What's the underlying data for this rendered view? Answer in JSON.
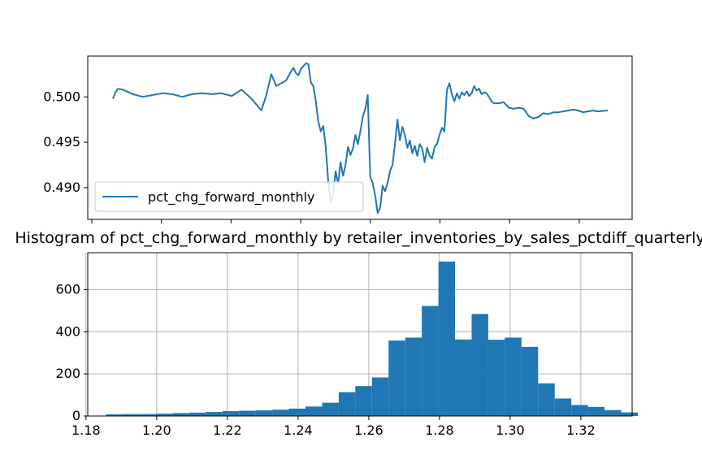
{
  "chart_data": [
    {
      "type": "line",
      "title": "",
      "xlabel": "",
      "ylabel": "",
      "ylim": [
        0.4865,
        0.5045
      ],
      "yticks": [
        0.49,
        0.495,
        0.5
      ],
      "ytick_labels": [
        "0.490",
        "0.495",
        "0.500"
      ],
      "legend_position": "lower-left",
      "grid": false,
      "series": [
        {
          "name": "pct_chg_forward_monthly",
          "color": "#1f77b4",
          "x": [
            0,
            0.005,
            0.01,
            0.02,
            0.04,
            0.06,
            0.08,
            0.1,
            0.12,
            0.14,
            0.16,
            0.18,
            0.2,
            0.22,
            0.24,
            0.26,
            0.28,
            0.3,
            0.31,
            0.32,
            0.33,
            0.35,
            0.36,
            0.365,
            0.37,
            0.375,
            0.38,
            0.385,
            0.39,
            0.395,
            0.4,
            0.405,
            0.41,
            0.415,
            0.42,
            0.425,
            0.43,
            0.435,
            0.44,
            0.445,
            0.45,
            0.455,
            0.46,
            0.465,
            0.47,
            0.475,
            0.48,
            0.485,
            0.49,
            0.495,
            0.5,
            0.505,
            0.51,
            0.515,
            0.52,
            0.525,
            0.53,
            0.535,
            0.54,
            0.545,
            0.55,
            0.555,
            0.56,
            0.565,
            0.57,
            0.575,
            0.58,
            0.585,
            0.59,
            0.595,
            0.6,
            0.605,
            0.61,
            0.615,
            0.62,
            0.625,
            0.63,
            0.635,
            0.64,
            0.645,
            0.65,
            0.655,
            0.66,
            0.665,
            0.67,
            0.675,
            0.68,
            0.685,
            0.69,
            0.695,
            0.7,
            0.705,
            0.71,
            0.715,
            0.72,
            0.725,
            0.73,
            0.735,
            0.74,
            0.745,
            0.75,
            0.755,
            0.76,
            0.765,
            0.77,
            0.78,
            0.79,
            0.8,
            0.81,
            0.82,
            0.83,
            0.84,
            0.85,
            0.86,
            0.87,
            0.88,
            0.89,
            0.9,
            0.91,
            0.92,
            0.93,
            0.94,
            0.95,
            0.96,
            0.97,
            0.98,
            1.0
          ],
          "y": [
            0.4998,
            0.5005,
            0.5009,
            0.5008,
            0.5003,
            0.5,
            0.5002,
            0.5004,
            0.5003,
            0.5,
            0.5003,
            0.5004,
            0.5003,
            0.5004,
            0.5001,
            0.5008,
            0.4998,
            0.4985,
            0.5002,
            0.5025,
            0.5012,
            0.5018,
            0.5028,
            0.5032,
            0.5026,
            0.5024,
            0.5031,
            0.5034,
            0.5037,
            0.5036,
            0.5016,
            0.5012,
            0.4995,
            0.4973,
            0.4962,
            0.4968,
            0.4945,
            0.4908,
            0.4884,
            0.4893,
            0.4918,
            0.4904,
            0.4928,
            0.4913,
            0.4925,
            0.4945,
            0.4936,
            0.4943,
            0.4958,
            0.4948,
            0.4962,
            0.4978,
            0.4987,
            0.5002,
            0.4912,
            0.4905,
            0.4891,
            0.4872,
            0.4878,
            0.4902,
            0.4896,
            0.4905,
            0.4918,
            0.4925,
            0.4948,
            0.4975,
            0.4952,
            0.4967,
            0.4958,
            0.4944,
            0.4952,
            0.4938,
            0.4946,
            0.4935,
            0.4948,
            0.4943,
            0.4928,
            0.4944,
            0.4935,
            0.4932,
            0.4945,
            0.4948,
            0.4958,
            0.4966,
            0.4962,
            0.5008,
            0.5015,
            0.5003,
            0.4995,
            0.5004,
            0.4998,
            0.5005,
            0.5002,
            0.5006,
            0.5001,
            0.5004,
            0.5012,
            0.5007,
            0.5009,
            0.5003,
            0.5005,
            0.5004,
            0.5,
            0.4995,
            0.4993,
            0.4993,
            0.4994,
            0.4988,
            0.4987,
            0.4988,
            0.4987,
            0.4979,
            0.4976,
            0.4978,
            0.4982,
            0.4981,
            0.4983,
            0.4983,
            0.4984,
            0.4985,
            0.4986,
            0.4985,
            0.4983,
            0.4984,
            0.4985,
            0.4984,
            0.4985
          ]
        }
      ]
    },
    {
      "type": "bar",
      "title": "Histogram of pct_chg_forward_monthly by retailer_inventories_by_sales_pctdiff_quarterly",
      "xlabel": "",
      "ylabel": "",
      "grid": true,
      "xlim": [
        1.1805,
        1.3345
      ],
      "ylim": [
        0,
        775
      ],
      "xticks": [
        1.18,
        1.2,
        1.22,
        1.24,
        1.26,
        1.28,
        1.3,
        1.32
      ],
      "xtick_labels": [
        "1.18",
        "1.20",
        "1.22",
        "1.24",
        "1.26",
        "1.28",
        "1.30",
        "1.32"
      ],
      "yticks": [
        0,
        200,
        400,
        600
      ],
      "ytick_labels": [
        "0",
        "200",
        "400",
        "600"
      ],
      "bin_start": 1.1857,
      "bin_width": 0.0047,
      "bar_color": "#1f77b4",
      "values": [
        8,
        9,
        9,
        11,
        14,
        16,
        19,
        23,
        25,
        27,
        30,
        35,
        45,
        63,
        113,
        142,
        183,
        358,
        372,
        522,
        733,
        363,
        484,
        362,
        372,
        328,
        155,
        83,
        52,
        43,
        28,
        17
      ]
    }
  ]
}
